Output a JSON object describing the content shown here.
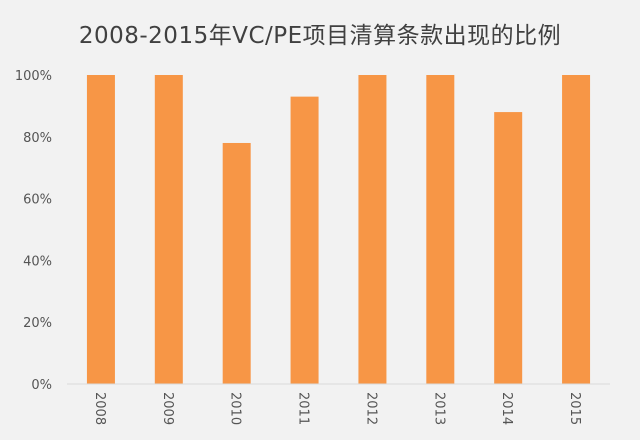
{
  "chart_data": {
    "type": "bar",
    "title": "2008-2015年VC/PE项目清算条款出现的比例",
    "categories": [
      "2008",
      "2009",
      "2010",
      "2011",
      "2012",
      "2013",
      "2014",
      "2015"
    ],
    "values": [
      100,
      100,
      78,
      93,
      100,
      100,
      88,
      100
    ],
    "ylim": [
      0,
      100
    ],
    "yticks": [
      "0%",
      "20%",
      "40%",
      "60%",
      "80%",
      "100%"
    ],
    "ytick_values": [
      0,
      20,
      40,
      60,
      80,
      100
    ],
    "xlabel": "",
    "ylabel": "",
    "grid": false,
    "legend": "none",
    "bar_color": "#f79646",
    "axis_color": "#d9d9d9",
    "x_tick_rotation": "vertical"
  }
}
